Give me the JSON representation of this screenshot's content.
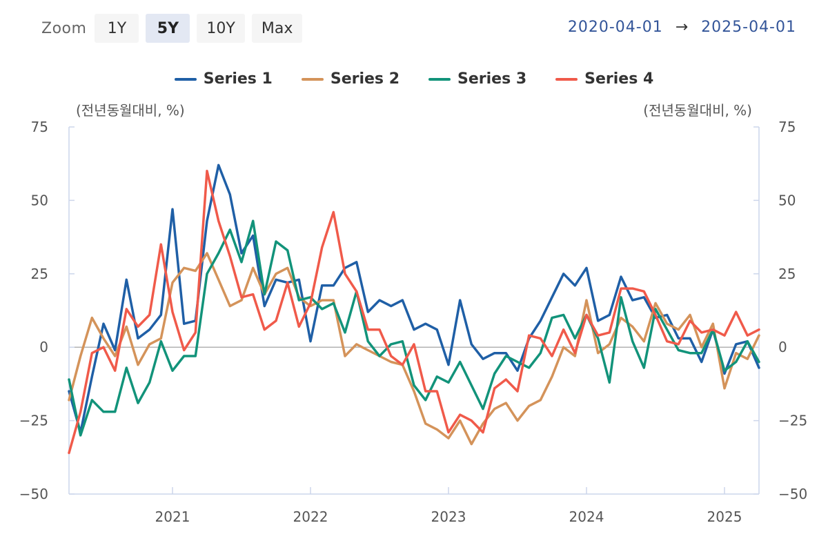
{
  "zoom": {
    "label": "Zoom",
    "buttons": [
      "1Y",
      "5Y",
      "10Y",
      "Max"
    ],
    "active": "5Y"
  },
  "range": {
    "start": "2020-04-01",
    "arrow": "→",
    "end": "2025-04-01"
  },
  "chart_data": {
    "type": "line",
    "left_unit": "(전년동월대비, %)",
    "right_unit": "(전년동월대비, %)",
    "ylim": [
      -50,
      75
    ],
    "yticks": [
      75,
      50,
      25,
      0,
      -25,
      -50
    ],
    "xlim": [
      2020.25,
      2025.25
    ],
    "xticks": [
      2021,
      2022,
      2023,
      2024,
      2025
    ],
    "xtick_labels": [
      "2021",
      "2022",
      "2023",
      "2024",
      "2025"
    ],
    "x_start": "2020-04",
    "x_step": "monthly",
    "legend_position": "top-center",
    "series": [
      {
        "name": "Series 1",
        "color": "#1f5fa6",
        "values": [
          -15,
          -29,
          -10,
          8,
          -1,
          23,
          3,
          6,
          11,
          47,
          8,
          9,
          43,
          62,
          52,
          32,
          38,
          14,
          23,
          22,
          23,
          2,
          21,
          21,
          27,
          29,
          12,
          16,
          14,
          16,
          6,
          8,
          6,
          -6,
          16,
          1,
          -4,
          -2,
          -2,
          -8,
          3,
          9,
          17,
          25,
          21,
          27,
          9,
          11,
          24,
          16,
          17,
          10,
          11,
          3,
          3,
          -5,
          6,
          -9,
          1,
          2,
          -7
        ]
      },
      {
        "name": "Series 2",
        "color": "#d4935a",
        "values": [
          -18,
          -3,
          10,
          3,
          -3,
          7,
          -6,
          1,
          3,
          22,
          27,
          26,
          32,
          23,
          14,
          16,
          27,
          18,
          25,
          27,
          17,
          14,
          16,
          16,
          -3,
          1,
          -1,
          -3,
          -5,
          -6,
          -15,
          -26,
          -28,
          -31,
          -25,
          -33,
          -26,
          -21,
          -19,
          -25,
          -20,
          -18,
          -10,
          0,
          -3,
          16,
          -2,
          1,
          10,
          7,
          2,
          15,
          8,
          6,
          11,
          0,
          8,
          -14,
          -2,
          -4,
          4
        ]
      },
      {
        "name": "Series 3",
        "color": "#12937a",
        "values": [
          -11,
          -30,
          -18,
          -22,
          -22,
          -7,
          -19,
          -12,
          2,
          -8,
          -3,
          -3,
          25,
          32,
          40,
          29,
          43,
          18,
          36,
          33,
          16,
          17,
          13,
          15,
          5,
          19,
          2,
          -3,
          1,
          2,
          -13,
          -18,
          -10,
          -12,
          -5,
          -13,
          -21,
          -9,
          -3,
          -5,
          -7,
          -2,
          10,
          11,
          3,
          11,
          3,
          -12,
          17,
          2,
          -7,
          13,
          6,
          -1,
          -2,
          -2,
          6,
          -8,
          -5,
          2,
          -5
        ]
      },
      {
        "name": "Series 4",
        "color": "#f05a4a",
        "values": [
          -36,
          -22,
          -2,
          0,
          -8,
          13,
          7,
          11,
          35,
          12,
          -1,
          5,
          60,
          43,
          31,
          17,
          18,
          6,
          9,
          22,
          7,
          15,
          34,
          46,
          25,
          19,
          6,
          6,
          -3,
          -6,
          1,
          -15,
          -15,
          -29,
          -23,
          -25,
          -29,
          -14,
          -11,
          -15,
          4,
          3,
          -3,
          6,
          -2,
          11,
          4,
          5,
          20,
          20,
          19,
          11,
          2,
          1,
          9,
          5,
          6,
          4,
          12,
          4,
          6
        ]
      }
    ]
  }
}
